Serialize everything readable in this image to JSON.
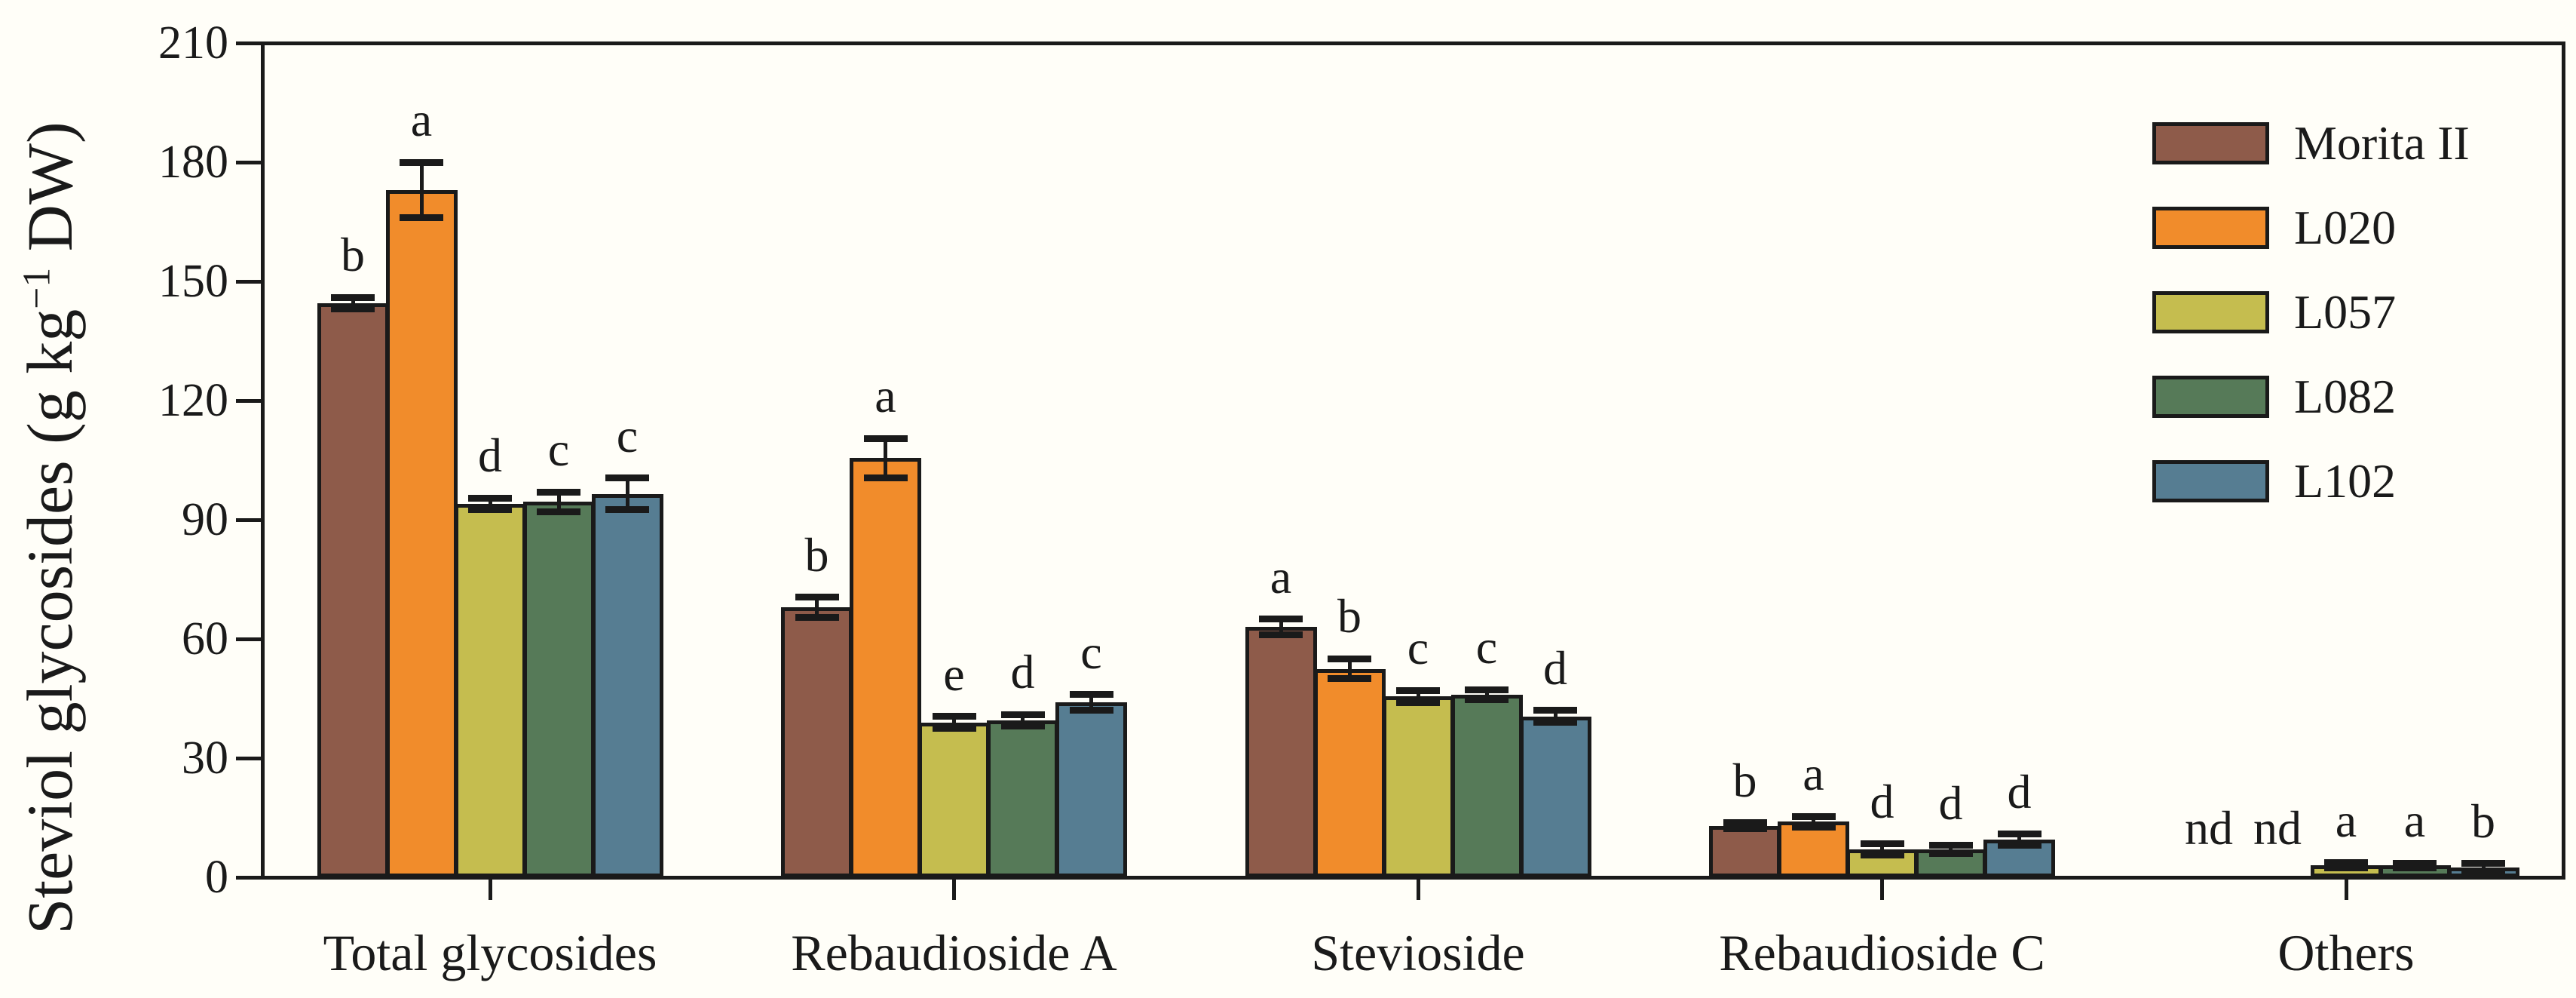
{
  "figure": {
    "background": "#fffef8",
    "axis_color": "#1a1a1a",
    "y_axis_title": {
      "pre": "Steviol glycosides (g kg",
      "sup": "−1",
      "post": " DW)"
    }
  },
  "chart_data": {
    "type": "bar",
    "title": "",
    "xlabel": "",
    "ylabel": "Steviol glycosides (g kg-1 DW)",
    "ylim": [
      0,
      210
    ],
    "yticks": [
      0,
      30,
      60,
      90,
      120,
      150,
      180,
      210
    ],
    "grid": false,
    "legend_position": "top-right",
    "nd_label": "nd",
    "categories": [
      "Total glycosides",
      "Rebaudioside A",
      "Stevioside",
      "Rebaudioside C",
      "Others"
    ],
    "series": [
      {
        "name": "Morita II",
        "color": "#8E5B4A",
        "values": [
          144.5,
          68,
          63,
          13,
          null
        ],
        "errors": [
          1.5,
          2.5,
          2,
          0.7,
          null
        ],
        "letters": [
          "b",
          "b",
          "a",
          "b",
          "nd"
        ]
      },
      {
        "name": "L020",
        "color": "#F18C2B",
        "values": [
          173,
          105.5,
          52.5,
          14,
          null
        ],
        "errors": [
          7,
          5,
          2.5,
          1.3,
          null
        ],
        "letters": [
          "a",
          "a",
          "b",
          "a",
          "nd"
        ]
      },
      {
        "name": "L057",
        "color": "#C5BD4F",
        "values": [
          94,
          39,
          45.5,
          7,
          3
        ],
        "errors": [
          1.5,
          1.5,
          1.5,
          1.4,
          0.7
        ],
        "letters": [
          "d",
          "e",
          "c",
          "d",
          "a"
        ]
      },
      {
        "name": "L082",
        "color": "#567A58",
        "values": [
          94.5,
          39.5,
          46,
          7,
          3
        ],
        "errors": [
          2.5,
          1.5,
          1.2,
          1,
          0.6
        ],
        "letters": [
          "c",
          "d",
          "c",
          "d",
          "a"
        ]
      },
      {
        "name": "L102",
        "color": "#567D92",
        "values": [
          96.5,
          44,
          40.5,
          9.5,
          2.5
        ],
        "errors": [
          4,
          2,
          1.5,
          1.4,
          1
        ],
        "letters": [
          "c",
          "c",
          "d",
          "d",
          "b"
        ]
      }
    ]
  }
}
